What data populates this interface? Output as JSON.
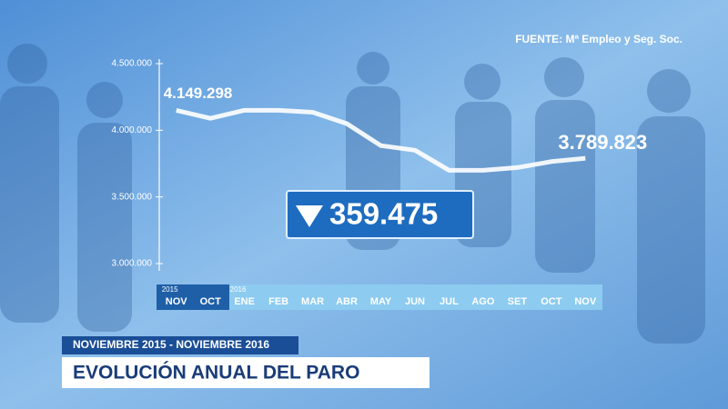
{
  "chart_data": {
    "type": "line",
    "title": "EVOLUCIÓN ANUAL DEL PARO",
    "subtitle": "NOVIEMBRE 2015 - NOVIEMBRE 2016",
    "source": "FUENTE: Mª Empleo y Seg. Soc.",
    "years": [
      "2015",
      "2016"
    ],
    "categories": [
      "NOV",
      "OCT",
      "ENE",
      "FEB",
      "MAR",
      "ABR",
      "MAY",
      "JUN",
      "JUL",
      "AGO",
      "SET",
      "OCT",
      "NOV"
    ],
    "values": [
      4149298,
      4090000,
      4150000,
      4150000,
      4135000,
      4050000,
      3885000,
      3850000,
      3700000,
      3700000,
      3720000,
      3765000,
      3789823
    ],
    "value_labels": [
      "4.149.298",
      null,
      null,
      null,
      null,
      null,
      null,
      null,
      null,
      null,
      null,
      null,
      "3.789.823"
    ],
    "annotation": {
      "value": 359475,
      "label": "359.475"
    },
    "color": "#ffffff",
    "ylim": [
      3000000,
      4500000
    ],
    "yticks": [
      {
        "value": 3000000,
        "label": "3.000.000"
      },
      {
        "value": 3500000,
        "label": "3.500.000"
      },
      {
        "value": 4000000,
        "label": "4.000.000"
      },
      {
        "value": 4500000,
        "label": "4.500.000"
      }
    ]
  }
}
